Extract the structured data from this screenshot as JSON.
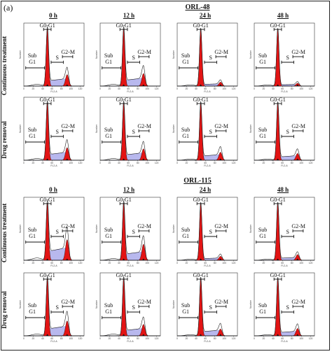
{
  "figure": {
    "panel_tag": "(a)",
    "columns": [
      "0 h",
      "12 h",
      "24 h",
      "48 h"
    ],
    "sections": [
      {
        "title": "ORL-48",
        "rows": [
          "Continuous treatment",
          "Drug removal"
        ]
      },
      {
        "title": "ORL-115",
        "rows": [
          "Continuous treatment",
          "Drug removal"
        ]
      }
    ],
    "phase_labels": {
      "g0g1": "G0-G1",
      "s": "S",
      "g2m": "G2-M",
      "sub_g1_top": "Sub",
      "sub_g1_bottom": "G1"
    },
    "axis": {
      "x_label": "FL2-A",
      "y_label": "Number",
      "x_ticks": [
        "0",
        "20",
        "40",
        "60",
        "80",
        "100",
        "120"
      ]
    },
    "colors": {
      "g0g1_fill": "#e31414",
      "g2m_fill": "#e31414",
      "s_fill": "#b8b8ee",
      "envelope": "#222222"
    }
  },
  "chart_data": {
    "type": "area",
    "description": "Flow cytometry DNA-content histograms; peak heights are relative (0-1).",
    "x_label": "FL2-A",
    "y_label": "Number",
    "xlim": [
      0,
      128
    ],
    "g1_channel": 50,
    "g2_channel": 92,
    "panels": [
      {
        "section": "ORL-48",
        "row": "Continuous treatment",
        "col": "0 h",
        "g1": 1.0,
        "g2": 0.2,
        "s": 0.13,
        "sub": 0.03
      },
      {
        "section": "ORL-48",
        "row": "Continuous treatment",
        "col": "12 h",
        "g1": 1.0,
        "g2": 0.22,
        "s": 0.14,
        "sub": 0.03
      },
      {
        "section": "ORL-48",
        "row": "Continuous treatment",
        "col": "24 h",
        "g1": 1.0,
        "g2": 0.07,
        "s": 0.04,
        "sub": 0.02
      },
      {
        "section": "ORL-48",
        "row": "Continuous treatment",
        "col": "48 h",
        "g1": 1.0,
        "g2": 0.05,
        "s": 0.03,
        "sub": 0.02
      },
      {
        "section": "ORL-48",
        "row": "Drug removal",
        "col": "0 h",
        "g1": 1.0,
        "g2": 0.22,
        "s": 0.14,
        "sub": 0.03
      },
      {
        "section": "ORL-48",
        "row": "Drug removal",
        "col": "12 h",
        "g1": 1.0,
        "g2": 0.2,
        "s": 0.13,
        "sub": 0.03
      },
      {
        "section": "ORL-48",
        "row": "Drug removal",
        "col": "24 h",
        "g1": 1.0,
        "g2": 0.14,
        "s": 0.1,
        "sub": 0.02
      },
      {
        "section": "ORL-48",
        "row": "Drug removal",
        "col": "48 h",
        "g1": 1.0,
        "g2": 0.12,
        "s": 0.08,
        "sub": 0.02
      },
      {
        "section": "ORL-115",
        "row": "Continuous treatment",
        "col": "0 h",
        "g1": 1.0,
        "g2": 0.36,
        "s": 0.22,
        "sub": 0.04
      },
      {
        "section": "ORL-115",
        "row": "Continuous treatment",
        "col": "12 h",
        "g1": 1.0,
        "g2": 0.28,
        "s": 0.15,
        "sub": 0.03
      },
      {
        "section": "ORL-115",
        "row": "Continuous treatment",
        "col": "24 h",
        "g1": 1.0,
        "g2": 0.07,
        "s": 0.04,
        "sub": 0.02
      },
      {
        "section": "ORL-115",
        "row": "Continuous treatment",
        "col": "48 h",
        "g1": 1.0,
        "g2": 0.1,
        "s": 0.05,
        "sub": 0.02
      },
      {
        "section": "ORL-115",
        "row": "Drug removal",
        "col": "0 h",
        "g1": 1.0,
        "g2": 0.26,
        "s": 0.17,
        "sub": 0.03
      },
      {
        "section": "ORL-115",
        "row": "Drug removal",
        "col": "12 h",
        "g1": 1.0,
        "g2": 0.2,
        "s": 0.13,
        "sub": 0.03
      },
      {
        "section": "ORL-115",
        "row": "Drug removal",
        "col": "24 h",
        "g1": 1.0,
        "g2": 0.12,
        "s": 0.1,
        "sub": 0.02
      },
      {
        "section": "ORL-115",
        "row": "Drug removal",
        "col": "48 h",
        "g1": 1.0,
        "g2": 0.13,
        "s": 0.08,
        "sub": 0.02
      }
    ]
  }
}
